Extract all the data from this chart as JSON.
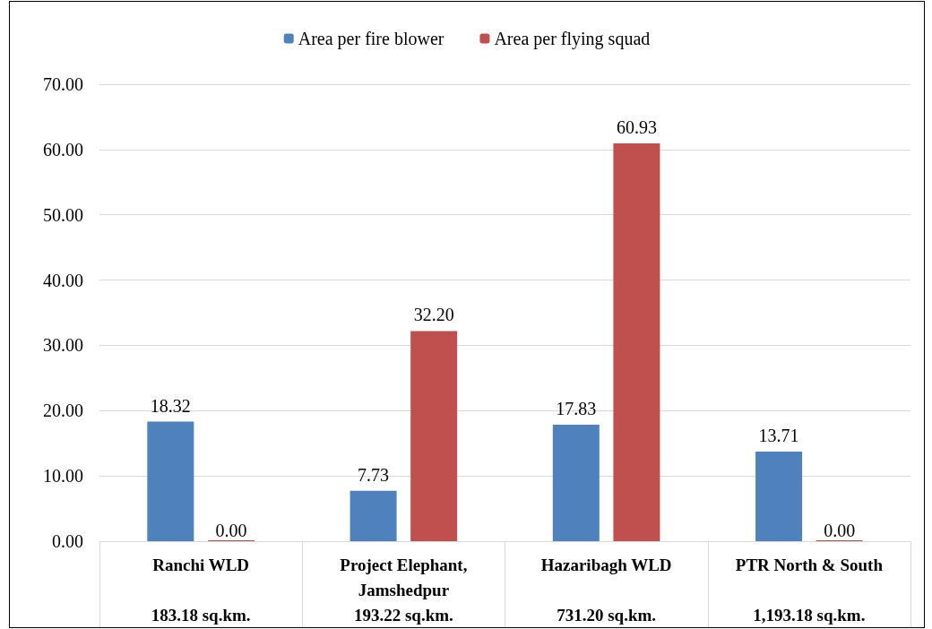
{
  "chart_data": {
    "type": "bar",
    "categories": [
      "Ranchi WLD\n\n183.18 sq.km.",
      "Project Elephant,\nJamshedpur\n193.22 sq.km.",
      "Hazaribagh WLD\n\n731.20 sq.km.",
      "PTR North & South\n\n1,193.18 sq.km."
    ],
    "series": [
      {
        "name": "Area per fire blower",
        "color": "#4f81bd",
        "values": [
          18.32,
          7.73,
          17.83,
          13.71
        ],
        "value_labels": [
          "18.32",
          "7.73",
          "17.83",
          "13.71"
        ]
      },
      {
        "name": "Area per flying squad",
        "color": "#c0504d",
        "values": [
          0,
          32.2,
          60.93,
          0
        ],
        "value_labels": [
          "0.00",
          "32.20",
          "60.93",
          "0.00"
        ]
      }
    ],
    "ylim": [
      0,
      70
    ],
    "yticks": [
      {
        "value": 0,
        "label": "0.00"
      },
      {
        "value": 10,
        "label": "10.00"
      },
      {
        "value": 20,
        "label": "20.00"
      },
      {
        "value": 30,
        "label": "30.00"
      },
      {
        "value": 40,
        "label": "40.00"
      },
      {
        "value": 50,
        "label": "50.00"
      },
      {
        "value": 60,
        "label": "60.00"
      },
      {
        "value": 70,
        "label": "70.00"
      }
    ],
    "grid": "y",
    "legend": "top"
  }
}
